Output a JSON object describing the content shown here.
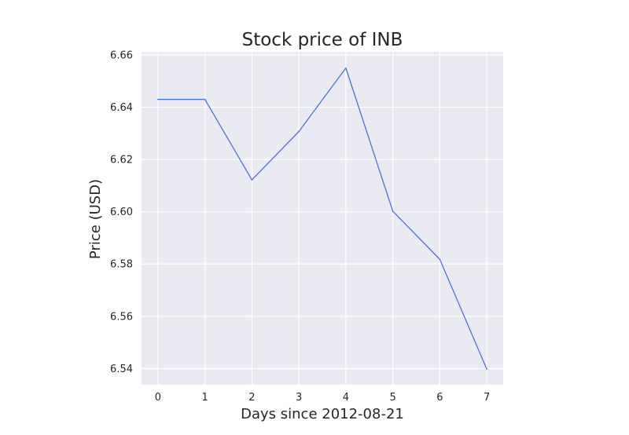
{
  "chart_data": {
    "type": "line",
    "title": "Stock price of INB",
    "xlabel": "Days since 2012-08-21",
    "ylabel": "Price (USD)",
    "x": [
      0,
      1,
      2,
      3,
      4,
      5,
      6,
      7
    ],
    "series": [
      {
        "name": "",
        "color": "#4c72d0",
        "values": [
          6.643,
          6.643,
          6.6122,
          6.6307,
          6.655,
          6.6002,
          6.5818,
          6.5398
        ]
      }
    ],
    "xticks": [
      "0",
      "1",
      "2",
      "3",
      "4",
      "5",
      "6",
      "7"
    ],
    "yticks": [
      "6.54",
      "6.56",
      "6.58",
      "6.60",
      "6.62",
      "6.64",
      "6.66"
    ],
    "ytick_values": [
      6.54,
      6.56,
      6.58,
      6.6,
      6.62,
      6.64,
      6.66
    ],
    "xlim": [
      -0.35,
      7.35
    ],
    "ylim": [
      6.5338,
      6.6612
    ],
    "grid": true,
    "background": "#eaeaf2",
    "grid_color": "#ffffff"
  }
}
